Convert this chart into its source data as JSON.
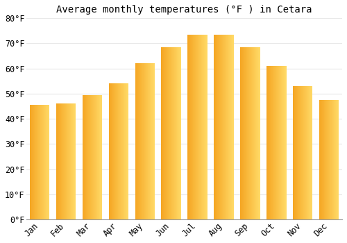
{
  "title": "Average monthly temperatures (°F ) in Cetara",
  "categories": [
    "Jan",
    "Feb",
    "Mar",
    "Apr",
    "May",
    "Jun",
    "Jul",
    "Aug",
    "Sep",
    "Oct",
    "Nov",
    "Dec"
  ],
  "values": [
    45.5,
    46.0,
    49.5,
    54.0,
    62.0,
    68.5,
    73.5,
    73.5,
    68.5,
    61.0,
    53.0,
    47.5
  ],
  "bar_color_left": "#F5A623",
  "bar_color_right": "#FFD966",
  "ylim": [
    0,
    80
  ],
  "yticks": [
    0,
    10,
    20,
    30,
    40,
    50,
    60,
    70,
    80
  ],
  "ytick_labels": [
    "0°F",
    "10°F",
    "20°F",
    "30°F",
    "40°F",
    "50°F",
    "60°F",
    "70°F",
    "80°F"
  ],
  "background_color": "#FFFFFF",
  "grid_color": "#E8E8E8",
  "title_fontsize": 10,
  "tick_fontsize": 8.5,
  "bar_width": 0.75
}
